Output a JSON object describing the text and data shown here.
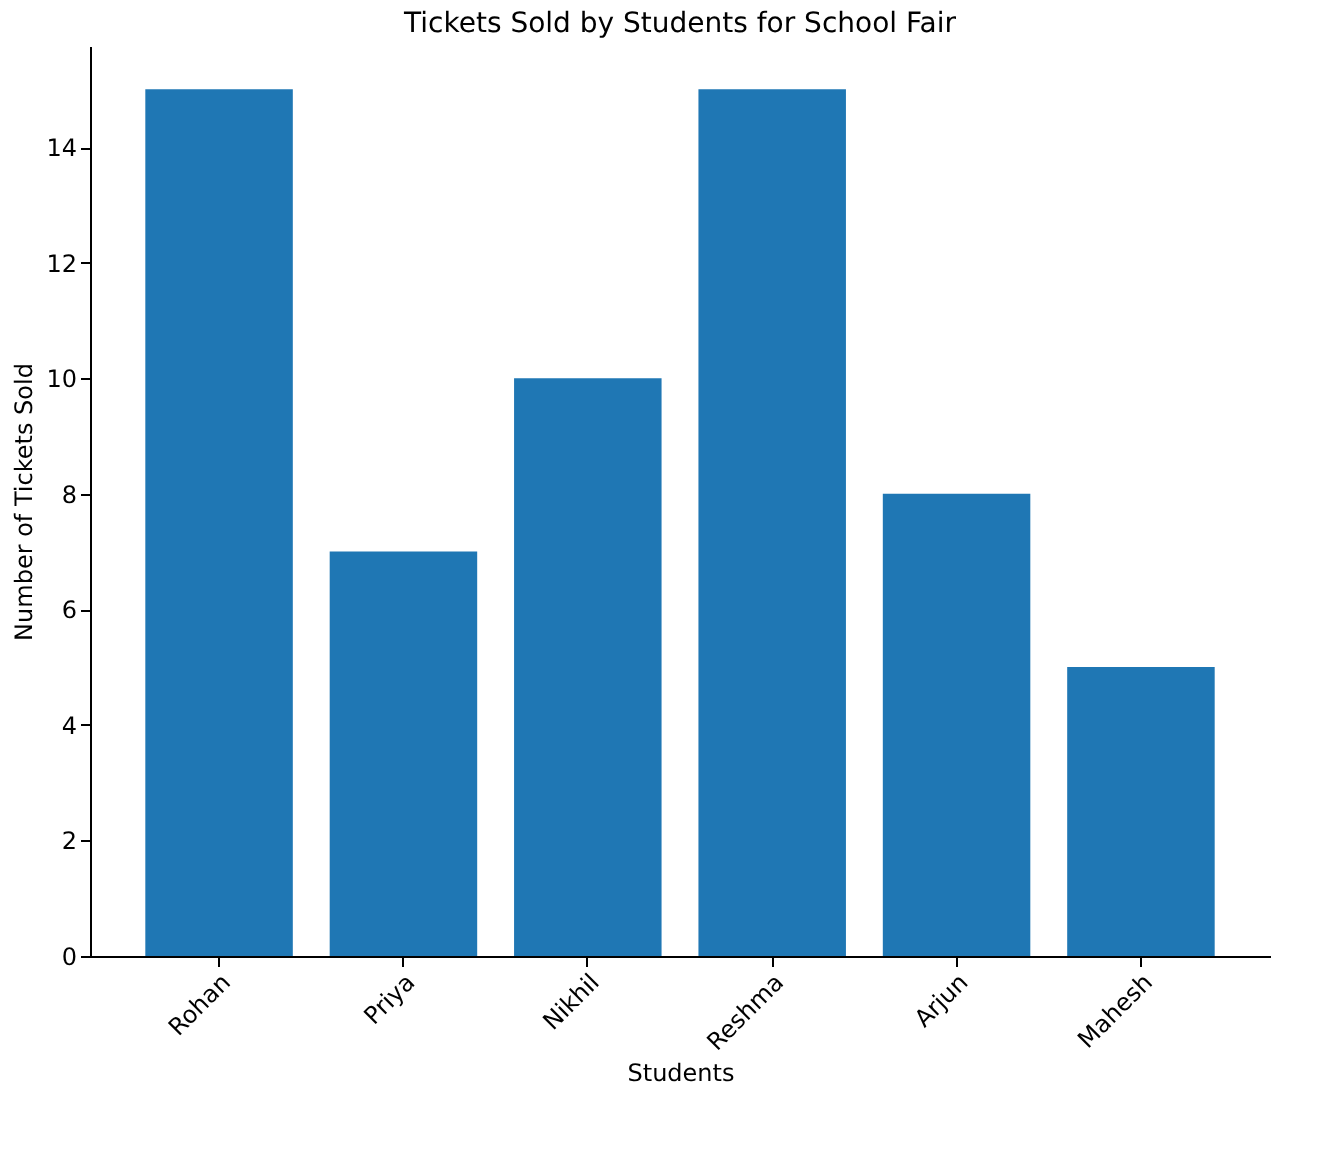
{
  "chart_data": {
    "type": "bar",
    "title": "Tickets Sold by Students for School Fair",
    "xlabel": "Students",
    "ylabel": "Number of Tickets Sold",
    "categories": [
      "Rohan",
      "Priya",
      "Nikhil",
      "Reshma",
      "Arjun",
      "Mahesh"
    ],
    "values": [
      15,
      7,
      10,
      15,
      8,
      5
    ],
    "color": "#1f77b4",
    "ylim": [
      0,
      15.75
    ],
    "yticks": [
      0,
      2,
      4,
      6,
      8,
      10,
      12,
      14
    ],
    "grid": false
  }
}
